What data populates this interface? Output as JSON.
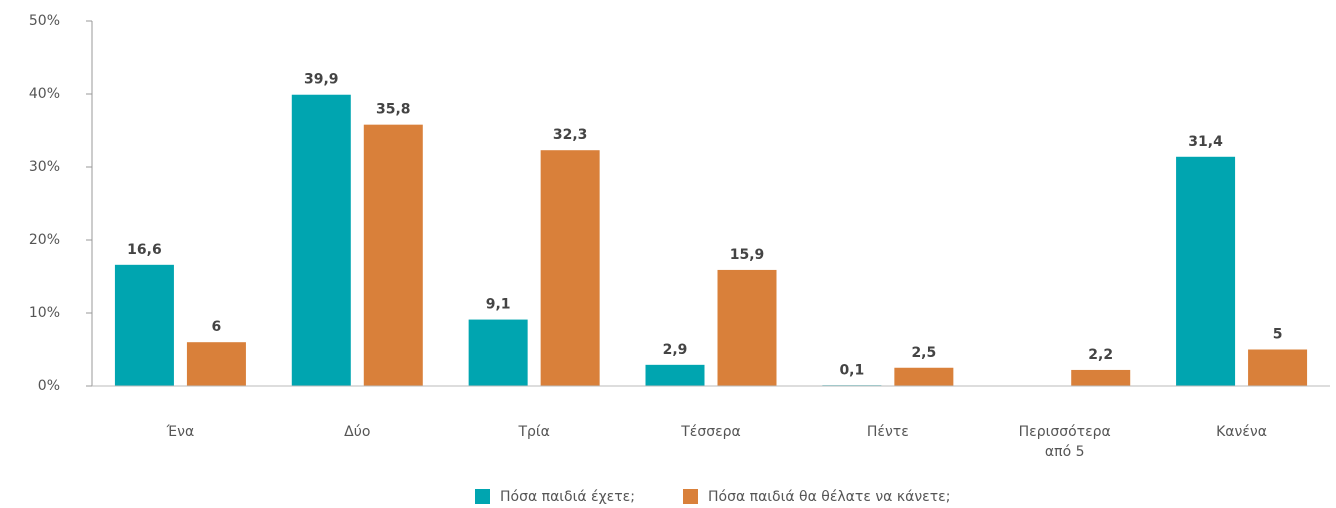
{
  "chart_data": {
    "type": "bar",
    "categories": [
      "Ένα",
      "Δύο",
      "Τρία",
      "Τέσσερα",
      "Πέντε",
      "Περισσότερα από 5",
      "Κανένα"
    ],
    "series": [
      {
        "name": "Πόσα παιδιά έχετε;",
        "color": "#00a5b0",
        "values": [
          16.6,
          39.9,
          9.1,
          2.9,
          0.1,
          null,
          31.4
        ],
        "value_labels": [
          "16,6",
          "39,9",
          "9,1",
          "2,9",
          "0,1",
          null,
          "31,4"
        ]
      },
      {
        "name": "Πόσα παιδιά θα θέλατε να κάνετε;",
        "color": "#d9803a",
        "values": [
          6,
          35.8,
          32.3,
          15.9,
          2.5,
          2.2,
          5
        ],
        "value_labels": [
          "6",
          "35,8",
          "32,3",
          "15,9",
          "2,5",
          "2,2",
          "5"
        ]
      }
    ],
    "ylim": [
      0,
      50
    ],
    "yticks": [
      {
        "value": 0,
        "label": "0%"
      },
      {
        "value": 10,
        "label": "10%"
      },
      {
        "value": 20,
        "label": "20%"
      },
      {
        "value": 30,
        "label": "30%"
      },
      {
        "value": 40,
        "label": "40%"
      },
      {
        "value": 50,
        "label": "50%"
      }
    ],
    "legend": "bottom"
  }
}
